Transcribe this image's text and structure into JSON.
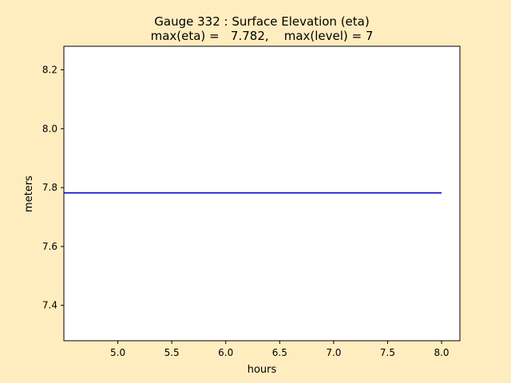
{
  "chart_data": {
    "type": "line",
    "title_line1": "Gauge 332 : Surface Elevation (eta)",
    "title_line2": "max(eta) =   7.782,    max(level) = 7",
    "xlabel": "hours",
    "ylabel": "meters",
    "xlim": [
      4.5,
      8.17
    ],
    "ylim": [
      7.28,
      8.28
    ],
    "xticks": [
      5.0,
      5.5,
      6.0,
      6.5,
      7.0,
      7.5,
      8.0
    ],
    "xtick_labels": [
      "5.0",
      "5.5",
      "6.0",
      "6.5",
      "7.0",
      "7.5",
      "8.0"
    ],
    "yticks": [
      7.4,
      7.6,
      7.8,
      8.0,
      8.2
    ],
    "ytick_labels": [
      "7.4",
      "7.6",
      "7.8",
      "8.0",
      "8.2"
    ],
    "grid": false,
    "series": [
      {
        "color": "#0000cc",
        "x": [
          4.5,
          5.0,
          5.5,
          6.0,
          6.5,
          7.0,
          7.5,
          8.0
        ],
        "y": [
          7.782,
          7.782,
          7.782,
          7.782,
          7.782,
          7.782,
          7.782,
          7.782
        ]
      }
    ]
  },
  "colors": {
    "figure_background": "#ffedbf",
    "axes_background": "#ffffff"
  }
}
